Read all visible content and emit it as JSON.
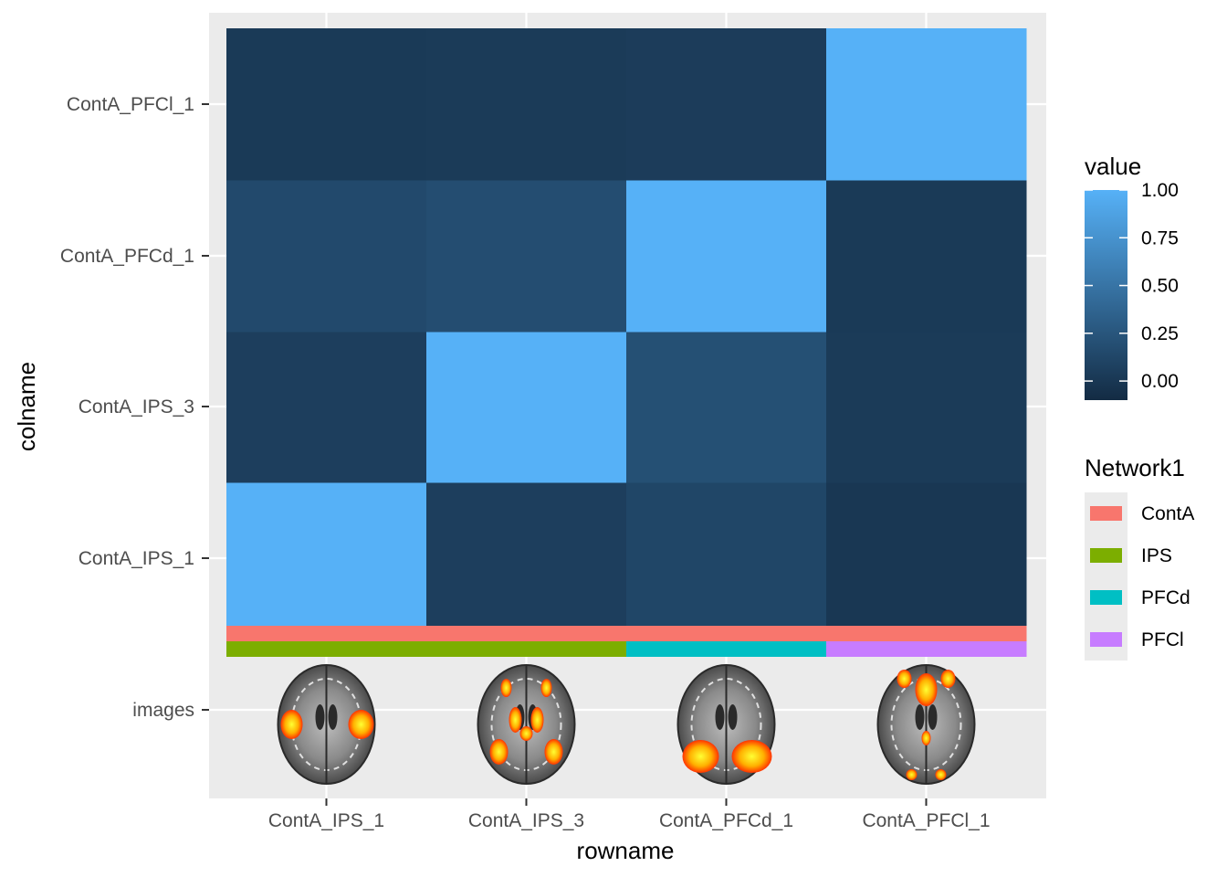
{
  "chart_data": {
    "type": "heatmap",
    "xlabel": "rowname",
    "ylabel": "colname",
    "x_categories": [
      "ContA_IPS_1",
      "ContA_IPS_3",
      "ContA_PFCd_1",
      "ContA_PFCl_1"
    ],
    "y_categories": [
      "ContA_IPS_1",
      "ContA_IPS_3",
      "ContA_PFCd_1",
      "ContA_PFCl_1"
    ],
    "y_extra_tick": "images",
    "matrix": [
      [
        1.0,
        0.06,
        0.12,
        0.0
      ],
      [
        0.06,
        1.0,
        0.2,
        0.03
      ],
      [
        0.15,
        0.18,
        1.0,
        0.02
      ],
      [
        0.02,
        0.03,
        0.04,
        1.0
      ]
    ],
    "color_scale": {
      "title": "value",
      "low_color": "#132B43",
      "high_color": "#56B1F7",
      "range": [
        -0.1,
        1.0
      ],
      "breaks": [
        "1.00",
        "0.75",
        "0.50",
        "0.25",
        "0.00"
      ],
      "break_values": [
        1.0,
        0.75,
        0.5,
        0.25,
        0.0
      ]
    },
    "network_legend": {
      "title": "Network1",
      "items": [
        {
          "label": "ContA",
          "color": "#F8766D"
        },
        {
          "label": "IPS",
          "color": "#7CAE00"
        },
        {
          "label": "PFCd",
          "color": "#00BFC4"
        },
        {
          "label": "PFCl",
          "color": "#C77CFF"
        }
      ]
    },
    "annotation_rows": {
      "network_top": [
        "ContA",
        "ContA",
        "ContA",
        "ContA"
      ],
      "network_bottom": [
        "IPS",
        "IPS",
        "PFCd",
        "PFCl"
      ]
    },
    "brain_images": [
      "brain-ips-1-icon",
      "brain-ips-3-icon",
      "brain-pfcd-1-icon",
      "brain-pfcl-1-icon"
    ],
    "panel_background": "#EBEBEB",
    "grid": true,
    "legend_position": "right"
  }
}
